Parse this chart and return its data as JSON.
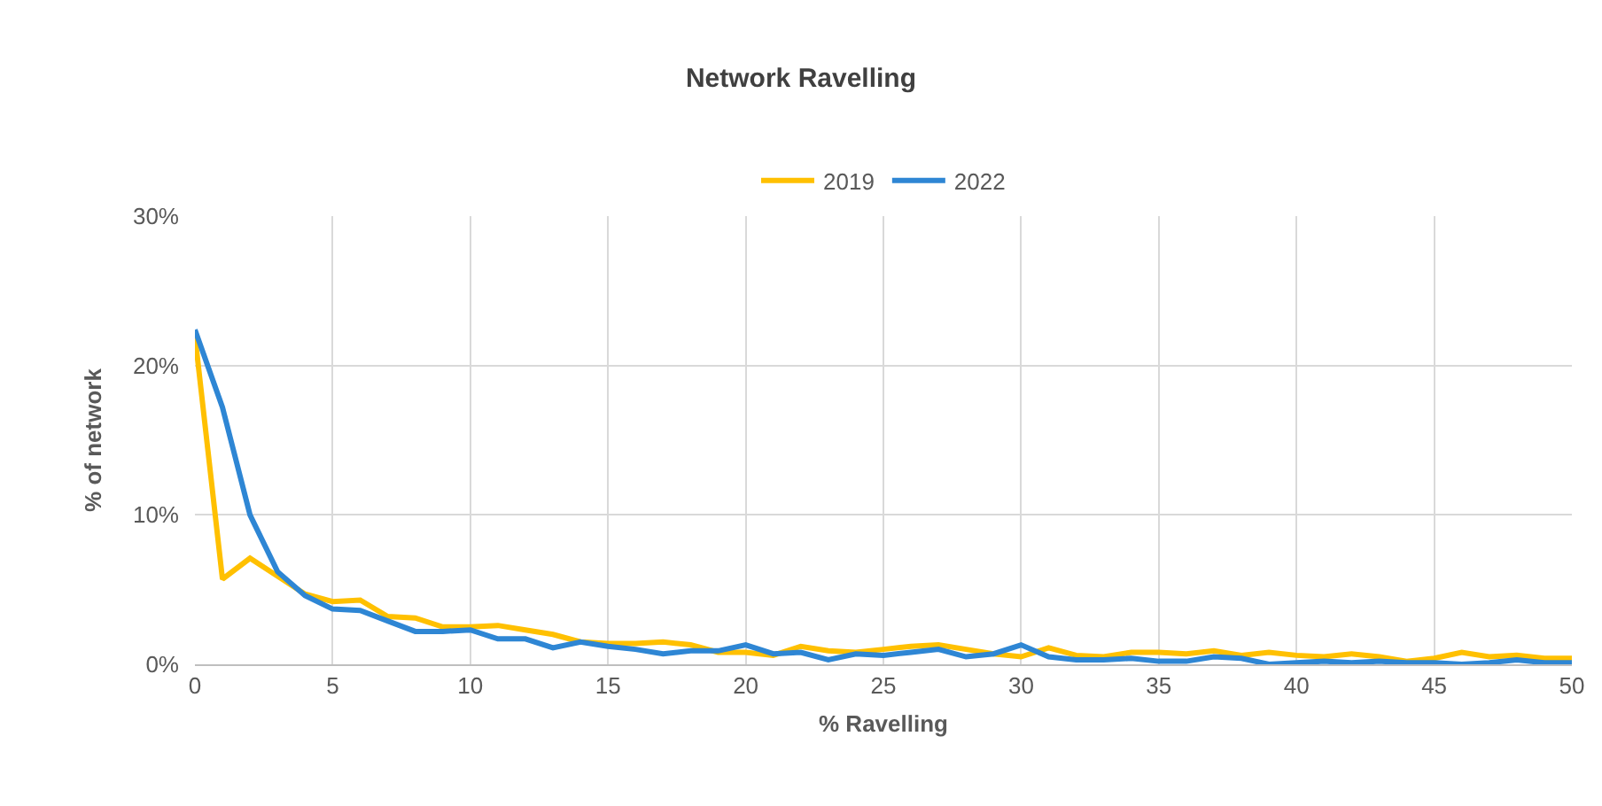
{
  "chart_data": {
    "type": "line",
    "title": "Network Ravelling",
    "xlabel": "% Ravelling",
    "ylabel": "% of network",
    "x": [
      0,
      1,
      2,
      3,
      4,
      5,
      6,
      7,
      8,
      9,
      10,
      11,
      12,
      13,
      14,
      15,
      16,
      17,
      18,
      19,
      20,
      21,
      22,
      23,
      24,
      25,
      26,
      27,
      28,
      29,
      30,
      31,
      32,
      33,
      34,
      35,
      36,
      37,
      38,
      39,
      40,
      41,
      42,
      43,
      44,
      45,
      46,
      47,
      48,
      49,
      50
    ],
    "series": [
      {
        "name": "2019",
        "color": "#ffc000",
        "values": [
          22,
          5.7,
          7.1,
          5.9,
          4.7,
          4.2,
          4.3,
          3.2,
          3.1,
          2.5,
          2.5,
          2.6,
          2.3,
          2.0,
          1.5,
          1.4,
          1.4,
          1.5,
          1.3,
          0.8,
          0.8,
          0.6,
          1.2,
          0.9,
          0.8,
          1.0,
          1.2,
          1.3,
          1.0,
          0.7,
          0.5,
          1.1,
          0.6,
          0.5,
          0.8,
          0.8,
          0.7,
          0.9,
          0.6,
          0.8,
          0.6,
          0.5,
          0.7,
          0.5,
          0.2,
          0.4,
          0.8,
          0.5,
          0.6,
          0.4,
          0.4
        ]
      },
      {
        "name": "2022",
        "color": "#2e86d4",
        "values": [
          22.4,
          17.2,
          10,
          6.2,
          4.6,
          3.7,
          3.6,
          2.9,
          2.2,
          2.2,
          2.3,
          1.7,
          1.7,
          1.1,
          1.5,
          1.2,
          1.0,
          0.7,
          0.9,
          0.9,
          1.3,
          0.7,
          0.8,
          0.3,
          0.7,
          0.6,
          0.8,
          1.0,
          0.5,
          0.7,
          1.3,
          0.5,
          0.3,
          0.3,
          0.4,
          0.2,
          0.2,
          0.5,
          0.4,
          0.0,
          0.1,
          0.2,
          0.1,
          0.2,
          0.1,
          0.1,
          0.0,
          0.1,
          0.3,
          0.1,
          0.1
        ]
      }
    ],
    "xlim": [
      0,
      50
    ],
    "xticks": [
      0,
      5,
      10,
      15,
      20,
      25,
      30,
      35,
      40,
      45,
      50
    ],
    "ylim": [
      0,
      30
    ],
    "yticks": [
      {
        "value": 0,
        "label": "0%"
      },
      {
        "value": 10,
        "label": "10%"
      },
      {
        "value": 20,
        "label": "20%"
      },
      {
        "value": 30,
        "label": "30%"
      }
    ],
    "grid": true,
    "legend": "top",
    "marker": "none",
    "line_style": "solid"
  }
}
